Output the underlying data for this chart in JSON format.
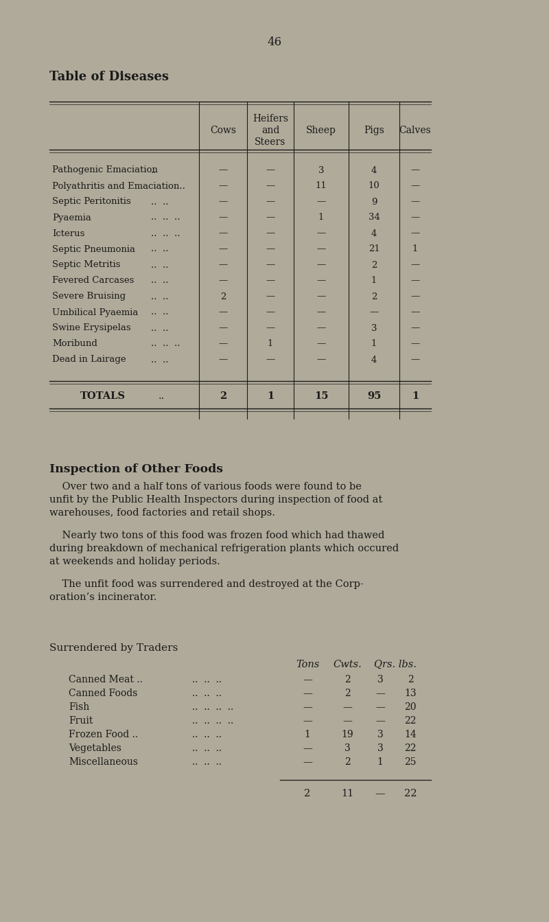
{
  "bg_color": "#b0aa9a",
  "text_color": "#1a1a1a",
  "page_number": "46",
  "table_title": "Table of Diseases",
  "table_rows": [
    [
      "Pathogenic Emaciation",
      "..",
      "—",
      "—",
      "3",
      "4",
      "—"
    ],
    [
      "Polyathritis and Emaciation..",
      "",
      "—",
      "—",
      "11",
      "10",
      "—"
    ],
    [
      "Septic Peritonitis",
      "..  ..",
      "—",
      "—",
      "—",
      "9",
      "—"
    ],
    [
      "Pyaemia",
      "..  ..  ..",
      "—",
      "—",
      "1",
      "34",
      "—"
    ],
    [
      "Icterus",
      "..  ..  ..",
      "—",
      "—",
      "—",
      "4",
      "—"
    ],
    [
      "Septic Pneumonia",
      "..  ..",
      "—",
      "—",
      "—",
      "21",
      "1"
    ],
    [
      "Septic Metritis",
      "..  ..",
      "—",
      "—",
      "—",
      "2",
      "—"
    ],
    [
      "Fevered Carcases",
      "..  ..",
      "—",
      "—",
      "—",
      "1",
      "—"
    ],
    [
      "Severe Bruising",
      "..  ..",
      "2",
      "—",
      "—",
      "2",
      "—"
    ],
    [
      "Umbilical Pyaemia",
      "..  ..",
      "—",
      "—",
      "—",
      "—",
      "—"
    ],
    [
      "Swine Erysipelas",
      "..  ..",
      "—",
      "—",
      "—",
      "3",
      "—"
    ],
    [
      "Moribund",
      "..  ..  ..",
      "—",
      "1",
      "—",
      "1",
      "—"
    ],
    [
      "Dead in Lairage",
      "..  ..",
      "—",
      "—",
      "—",
      "4",
      "—"
    ]
  ],
  "section2_title": "Inspection of Other Foods",
  "surrendered_title": "Surrendered by Traders",
  "food_rows": [
    [
      "Canned Meat ..",
      "..  ..  ..",
      "—",
      "2",
      "3",
      "2"
    ],
    [
      "Canned Foods",
      "..  ..  ..",
      "—",
      "2",
      "—",
      "13"
    ],
    [
      "Fish",
      "..  ..  ..  ..",
      "—",
      "—",
      "—",
      "20"
    ],
    [
      "Fruit",
      "..  ..  ..  ..",
      "—",
      "—",
      "—",
      "22"
    ],
    [
      "Frozen Food ..",
      "..  ..  ..",
      "1",
      "19",
      "3",
      "14"
    ],
    [
      "Vegetables",
      "..  ..  ..",
      "—",
      "3",
      "3",
      "22"
    ],
    [
      "Miscellaneous",
      "..  ..  ..",
      "—",
      "2",
      "1",
      "25"
    ]
  ],
  "food_totals": [
    "2",
    "11",
    "—",
    "22"
  ]
}
